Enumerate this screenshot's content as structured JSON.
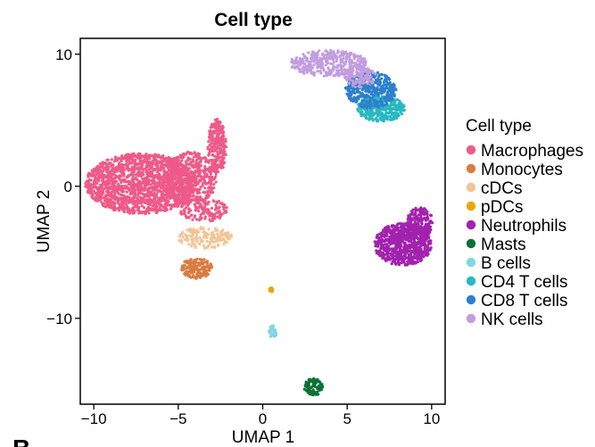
{
  "panel_letter": "B",
  "chart_data": {
    "type": "scatter",
    "title": "Cell type",
    "xlabel": "UMAP 1",
    "ylabel": "UMAP 2",
    "xlim": [
      -10.8,
      10.8
    ],
    "ylim": [
      -16.5,
      11.2
    ],
    "xticks": [
      -10,
      -5,
      0,
      5,
      10
    ],
    "yticks": [
      -10,
      0,
      10
    ],
    "xtick_labels": [
      "−10",
      "−5",
      "0",
      "5",
      "10"
    ],
    "ytick_labels": [
      "−10",
      "0",
      "10"
    ],
    "grid": false,
    "legend": {
      "title": "Cell type",
      "position": "right"
    },
    "series": [
      {
        "name": "Macrophages",
        "color": "#EE5A87",
        "clusters": [
          {
            "cx": -7.2,
            "cy": 0.2,
            "rx": 3.3,
            "ry": 2.3,
            "n": 1600
          },
          {
            "cx": -4.3,
            "cy": 0.6,
            "rx": 1.6,
            "ry": 2.0,
            "n": 450
          },
          {
            "cx": -2.7,
            "cy": 3.0,
            "rx": 0.55,
            "ry": 2.1,
            "n": 260
          },
          {
            "cx": -3.5,
            "cy": -1.8,
            "rx": 1.4,
            "ry": 0.9,
            "n": 150
          }
        ]
      },
      {
        "name": "Monocytes",
        "color": "#D97C3F",
        "clusters": [
          {
            "cx": -3.9,
            "cy": -6.2,
            "rx": 0.9,
            "ry": 0.8,
            "n": 170
          }
        ]
      },
      {
        "name": "cDCs",
        "color": "#F4C496",
        "clusters": [
          {
            "cx": -3.4,
            "cy": -3.9,
            "rx": 1.6,
            "ry": 0.8,
            "n": 170
          }
        ]
      },
      {
        "name": "pDCs",
        "color": "#E5A90E",
        "clusters": [
          {
            "cx": 0.5,
            "cy": -7.8,
            "rx": 0.14,
            "ry": 0.2,
            "n": 10
          }
        ]
      },
      {
        "name": "Neutrophils",
        "color": "#A222AE",
        "clusters": [
          {
            "cx": 8.3,
            "cy": -4.4,
            "rx": 1.7,
            "ry": 1.6,
            "n": 700
          },
          {
            "cx": 9.3,
            "cy": -2.8,
            "rx": 0.8,
            "ry": 1.2,
            "n": 200
          }
        ]
      },
      {
        "name": "Masts",
        "color": "#0E7137",
        "clusters": [
          {
            "cx": 3.0,
            "cy": -15.2,
            "rx": 0.55,
            "ry": 0.65,
            "n": 90
          }
        ]
      },
      {
        "name": "B cells",
        "color": "#80D7E0",
        "clusters": [
          {
            "cx": 0.6,
            "cy": -11.0,
            "rx": 0.25,
            "ry": 0.45,
            "n": 28
          }
        ]
      },
      {
        "name": "CD4 T cells",
        "color": "#29B8C1",
        "clusters": [
          {
            "cx": 7.0,
            "cy": 5.9,
            "rx": 1.4,
            "ry": 1.0,
            "n": 340
          }
        ]
      },
      {
        "name": "CD8 T cells",
        "color": "#2D80CC",
        "clusters": [
          {
            "cx": 6.4,
            "cy": 7.3,
            "rx": 1.5,
            "ry": 1.4,
            "n": 420
          }
        ]
      },
      {
        "name": "NK cells",
        "color": "#C29DE0",
        "clusters": [
          {
            "cx": 3.9,
            "cy": 9.3,
            "rx": 2.3,
            "ry": 1.0,
            "n": 380
          },
          {
            "cx": 5.8,
            "cy": 8.3,
            "rx": 1.0,
            "ry": 0.8,
            "n": 120
          }
        ]
      }
    ]
  }
}
